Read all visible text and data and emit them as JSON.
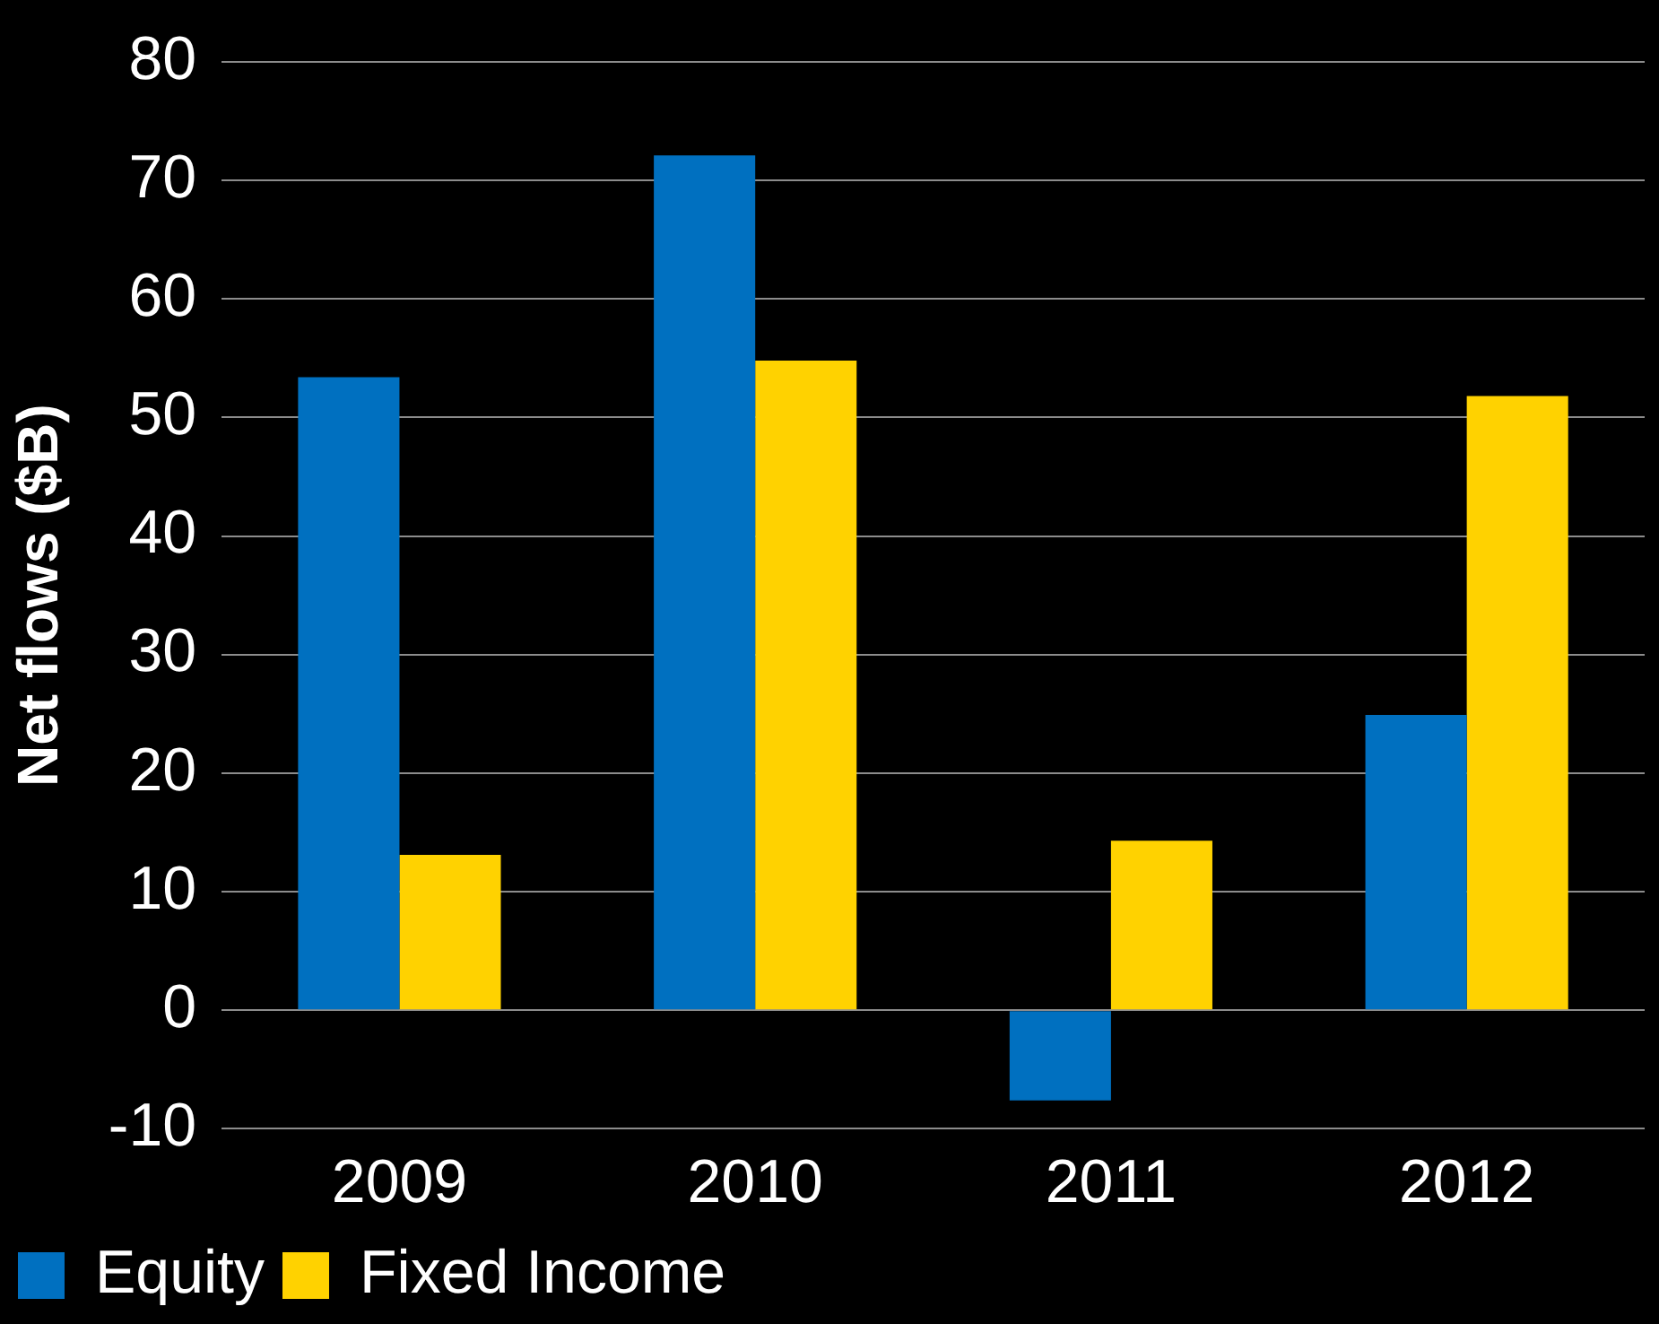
{
  "chart_data": {
    "type": "bar",
    "ylabel": "Net flows ($B)",
    "categories": [
      "2009",
      "2010",
      "2011",
      "2012"
    ],
    "series": [
      {
        "name": "Equity",
        "color": "#0070c0",
        "values": [
          53.4,
          72.1,
          -7.6,
          24.9
        ]
      },
      {
        "name": "Fixed Income",
        "color": "#ffd200",
        "values": [
          13.1,
          54.8,
          14.3,
          51.8
        ]
      }
    ],
    "ylim": [
      -10,
      80
    ],
    "yticks": [
      -10,
      0,
      10,
      20,
      30,
      40,
      50,
      60,
      70,
      80
    ],
    "grid": "y",
    "legend": "bottom"
  }
}
